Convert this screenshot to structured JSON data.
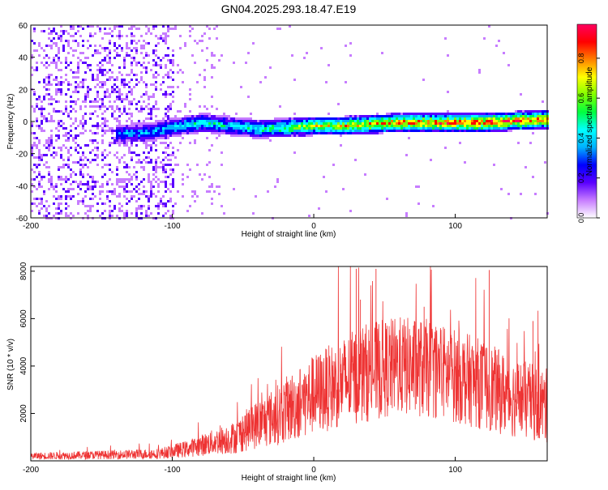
{
  "title": "GN04.2025.293.18.47.E19",
  "chart_data": [
    {
      "type": "heatmap",
      "name": "spectrogram",
      "xlabel": "Height of straight line (km)",
      "ylabel": "Frequency (Hz)",
      "xlim": [
        -200,
        165
      ],
      "ylim": [
        -60,
        60
      ],
      "xticks": [
        "-200",
        "-100",
        "0",
        "100"
      ],
      "xtick_values": [
        -200,
        -100,
        0,
        100
      ],
      "yticks": [
        "60",
        "40",
        "20",
        "0",
        "-20",
        "-40",
        "-60"
      ],
      "ytick_values": [
        60,
        40,
        20,
        0,
        -20,
        -40,
        -60
      ],
      "colorbar": {
        "label": "Normalized spectral amplitude",
        "range": [
          0,
          0.97
        ],
        "ticks": [
          "0.0",
          "0.2",
          "0.4",
          "0.6",
          "0.8"
        ],
        "tick_values": [
          0.0,
          0.2,
          0.4,
          0.6,
          0.8
        ],
        "colors": [
          "#ffffff",
          "#c77dff",
          "#5a00ff",
          "#0000ff",
          "#00b0ff",
          "#00ffff",
          "#00ff40",
          "#80ff00",
          "#ffff00",
          "#ff8000",
          "#ff0000",
          "#ff0060"
        ]
      },
      "signal_band": {
        "x": [
          -140,
          -120,
          -100,
          -80,
          -60,
          -40,
          -20,
          0,
          20,
          40,
          60,
          80,
          100,
          120,
          140,
          165
        ],
        "frequency": [
          -7,
          -6,
          -3,
          0,
          -2,
          -4,
          -3,
          -2,
          -2,
          -1,
          0,
          0,
          0,
          0,
          1,
          2
        ],
        "amplitude": [
          0.35,
          0.4,
          0.45,
          0.5,
          0.45,
          0.5,
          0.6,
          0.7,
          0.75,
          0.8,
          0.85,
          0.88,
          0.9,
          0.9,
          0.9,
          0.85
        ]
      },
      "noise_region": {
        "x_from": -200,
        "x_to": -65,
        "dense_until": -100
      }
    },
    {
      "type": "line",
      "name": "snr",
      "color": "#ee3333",
      "xlabel": "Height of straight line (km)",
      "ylabel": "SNR (10 * v/v)",
      "xlim": [
        -200,
        165
      ],
      "ylim": [
        0,
        8200
      ],
      "xticks": [
        "-200",
        "-100",
        "0",
        "100"
      ],
      "xtick_values": [
        -200,
        -100,
        0,
        100
      ],
      "yticks": [
        "8000",
        "6000",
        "4000",
        "2000"
      ],
      "ytick_values": [
        8000,
        6000,
        4000,
        2000
      ],
      "envelope": {
        "x": [
          -200,
          -150,
          -110,
          -90,
          -70,
          -55,
          -45,
          -30,
          -15,
          0,
          20,
          35,
          60,
          80,
          100,
          120,
          140,
          165
        ],
        "mean": [
          200,
          250,
          300,
          500,
          800,
          1000,
          1400,
          1800,
          2300,
          2800,
          3300,
          3700,
          4000,
          3900,
          3600,
          3200,
          2700,
          2300
        ],
        "spread": [
          150,
          180,
          220,
          350,
          550,
          700,
          950,
          1200,
          1500,
          1700,
          1900,
          2100,
          2100,
          2100,
          2000,
          1900,
          1700,
          1600
        ]
      },
      "peaks": [
        {
          "x": 30,
          "y": 8100
        },
        {
          "x": 44,
          "y": 8100
        },
        {
          "x": 124,
          "y": 8050
        },
        {
          "x": 33,
          "y": 6800
        },
        {
          "x": 78,
          "y": 6500
        },
        {
          "x": 155,
          "y": 5900
        }
      ]
    }
  ]
}
